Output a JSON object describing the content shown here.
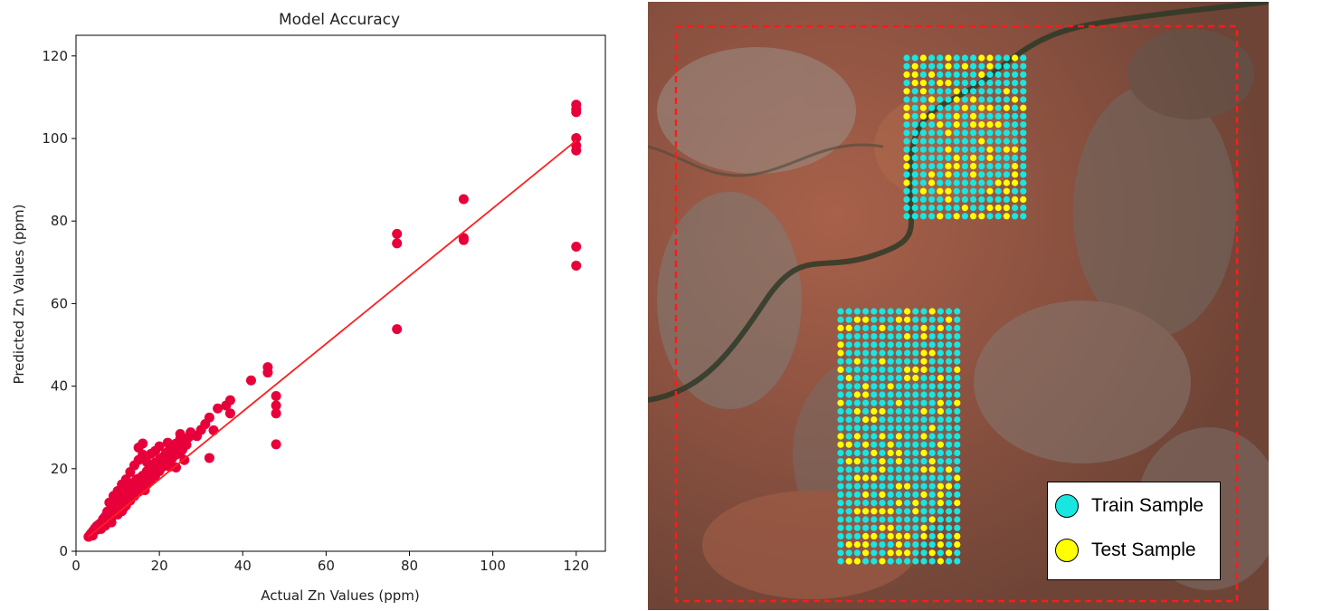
{
  "colors": {
    "points": "#e8003a",
    "fit_line": "#ff1f1f",
    "train": "#18e6e0",
    "test": "#ffff00",
    "boundary": "#ff1a1a"
  },
  "chart_data": {
    "type": "scatter",
    "title": "Model Accuracy",
    "xlabel": "Actual Zn Values (ppm)",
    "ylabel": "Predicted Zn Values (ppm)",
    "xlim": [
      0,
      127
    ],
    "ylim": [
      0,
      125
    ],
    "xticks": [
      0,
      20,
      40,
      60,
      80,
      100,
      120
    ],
    "yticks": [
      0,
      20,
      40,
      60,
      80,
      100,
      120
    ],
    "grid": false,
    "fit_line": {
      "x": [
        3,
        120
      ],
      "y": [
        3.5,
        99.5
      ]
    },
    "points": [
      [
        3,
        3.5
      ],
      [
        3.5,
        4.2
      ],
      [
        4,
        4.8
      ],
      [
        4,
        3.8
      ],
      [
        4.5,
        5.5
      ],
      [
        5,
        5.2
      ],
      [
        5,
        6.1
      ],
      [
        5.5,
        6.5
      ],
      [
        6,
        6.9
      ],
      [
        6,
        5.4
      ],
      [
        6.5,
        7.8
      ],
      [
        7,
        8.4
      ],
      [
        7,
        6.2
      ],
      [
        7.5,
        9.6
      ],
      [
        8,
        9.1
      ],
      [
        8,
        11.8
      ],
      [
        8.5,
        8.2
      ],
      [
        9,
        10.4
      ],
      [
        9,
        13.4
      ],
      [
        9.5,
        10.1
      ],
      [
        10,
        11.4
      ],
      [
        10,
        8.9
      ],
      [
        10,
        14.6
      ],
      [
        10.5,
        12.2
      ],
      [
        11,
        12.8
      ],
      [
        11,
        16.2
      ],
      [
        11,
        9.7
      ],
      [
        11.5,
        13.6
      ],
      [
        12,
        14.1
      ],
      [
        12,
        11.1
      ],
      [
        12,
        17.4
      ],
      [
        12.5,
        15.2
      ],
      [
        13,
        15.4
      ],
      [
        13,
        12.3
      ],
      [
        13,
        19.2
      ],
      [
        13.5,
        16.3
      ],
      [
        14,
        16.7
      ],
      [
        14,
        13.4
      ],
      [
        14,
        20.8
      ],
      [
        14.5,
        17.4
      ],
      [
        15,
        17.6
      ],
      [
        15,
        14.4
      ],
      [
        15,
        22.1
      ],
      [
        15,
        25.1
      ],
      [
        16,
        18.3
      ],
      [
        16,
        15.3
      ],
      [
        16,
        23.4
      ],
      [
        16,
        26.1
      ],
      [
        17,
        19.4
      ],
      [
        17,
        16.2
      ],
      [
        17,
        21.6
      ],
      [
        18,
        20.1
      ],
      [
        18,
        17.4
      ],
      [
        18,
        23.6
      ],
      [
        19,
        21.4
      ],
      [
        19,
        18.3
      ],
      [
        19,
        24.3
      ],
      [
        20,
        22.2
      ],
      [
        20,
        19.4
      ],
      [
        20,
        25.4
      ],
      [
        21,
        22.9
      ],
      [
        21,
        20.6
      ],
      [
        22,
        24.1
      ],
      [
        22,
        21.2
      ],
      [
        22,
        26.3
      ],
      [
        23,
        25.2
      ],
      [
        23,
        22.4
      ],
      [
        24,
        26.1
      ],
      [
        24,
        23.4
      ],
      [
        24,
        20.3
      ],
      [
        25,
        27.2
      ],
      [
        25,
        23.8
      ],
      [
        25,
        28.4
      ],
      [
        26,
        26.4
      ],
      [
        26,
        22.1
      ],
      [
        27,
        27.6
      ],
      [
        28,
        28.2
      ],
      [
        29,
        27.9
      ],
      [
        30,
        29.4
      ],
      [
        31,
        30.8
      ],
      [
        32,
        32.4
      ],
      [
        32,
        22.6
      ],
      [
        33,
        29.3
      ],
      [
        34,
        34.6
      ],
      [
        36,
        35.3
      ],
      [
        37,
        36.6
      ],
      [
        37,
        33.4
      ],
      [
        42,
        41.4
      ],
      [
        46,
        44.6
      ],
      [
        46,
        43.3
      ],
      [
        48,
        37.6
      ],
      [
        48,
        35.3
      ],
      [
        48,
        33.4
      ],
      [
        48,
        25.9
      ],
      [
        77,
        76.9
      ],
      [
        77,
        74.6
      ],
      [
        77,
        53.8
      ],
      [
        93,
        85.3
      ],
      [
        93,
        75.9
      ],
      [
        93,
        75.4
      ],
      [
        120,
        108.2
      ],
      [
        120,
        107.1
      ],
      [
        120,
        106.4
      ],
      [
        120,
        100.1
      ],
      [
        120,
        98.3
      ],
      [
        120,
        97.1
      ],
      [
        120,
        73.8
      ],
      [
        120,
        69.2
      ],
      [
        8.5,
        7.0
      ],
      [
        9.5,
        11.9
      ],
      [
        10.5,
        13.1
      ],
      [
        11.5,
        10.6
      ],
      [
        12.5,
        12.1
      ],
      [
        13.5,
        14.6
      ],
      [
        14.5,
        15.0
      ],
      [
        15.5,
        16.8
      ],
      [
        16.5,
        14.8
      ],
      [
        17.5,
        18.8
      ],
      [
        18.5,
        19.7
      ],
      [
        19.5,
        20.2
      ],
      [
        20.5,
        21.5
      ],
      [
        21.5,
        23.6
      ],
      [
        22.5,
        20.5
      ],
      [
        23.5,
        24.8
      ],
      [
        24.5,
        25.3
      ],
      [
        25.5,
        24.6
      ],
      [
        26.5,
        25.8
      ],
      [
        27.5,
        28.8
      ]
    ]
  },
  "legend": {
    "train_label": "Train Sample",
    "test_label": "Test Sample"
  }
}
